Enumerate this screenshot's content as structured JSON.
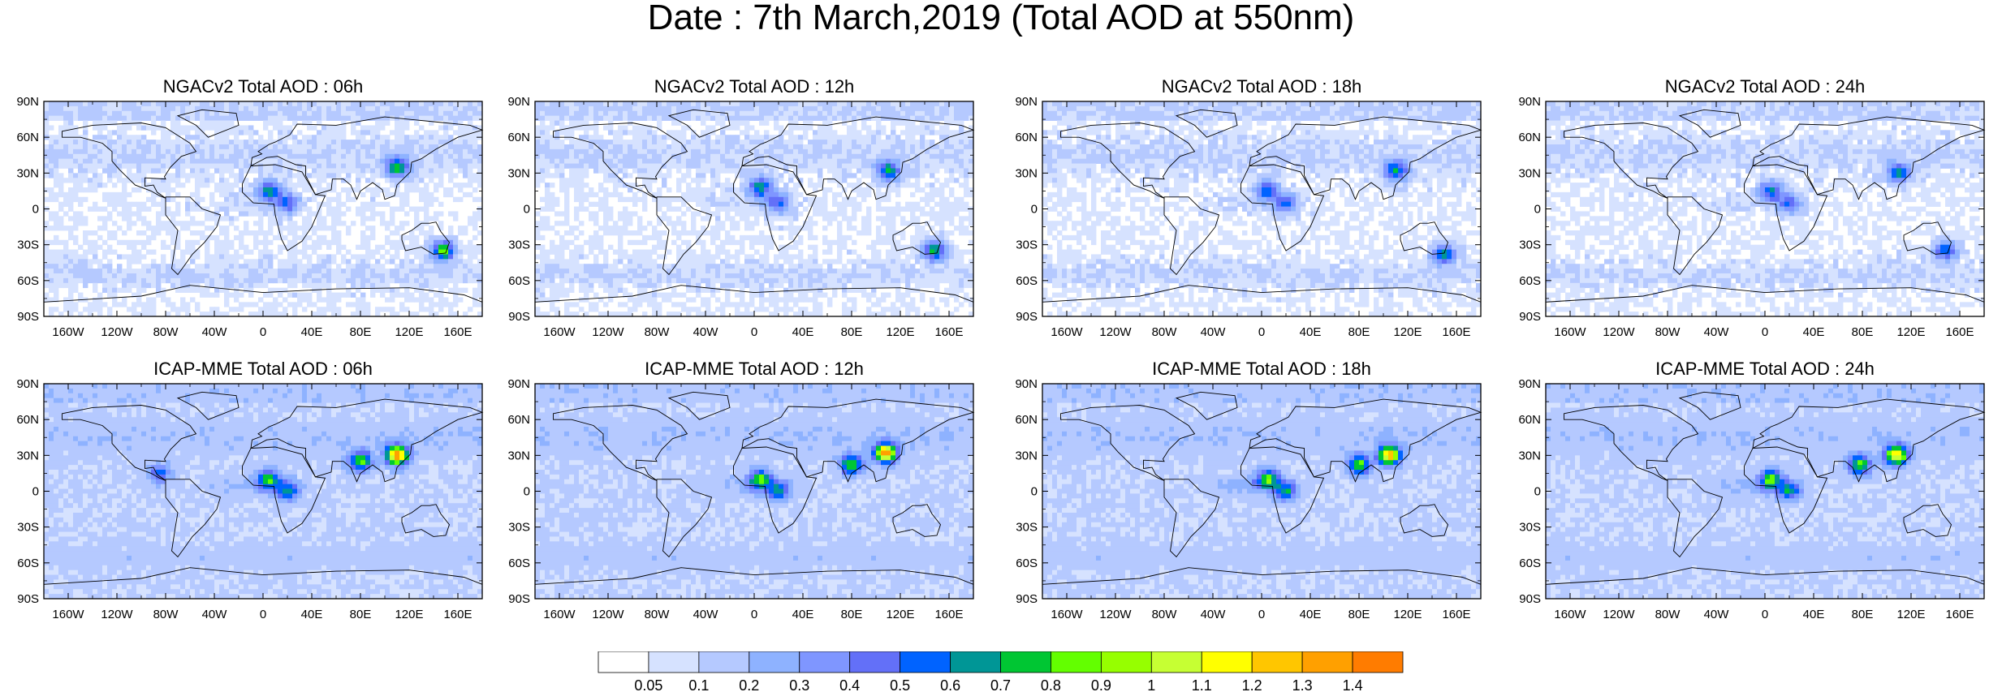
{
  "title": "Date : 7th March,2019 (Total AOD at 550nm)",
  "lat_ticks": [
    "90N",
    "60N",
    "30N",
    "0",
    "30S",
    "60S",
    "90S"
  ],
  "lon_ticks": [
    "160W",
    "120W",
    "80W",
    "40W",
    "0",
    "40E",
    "80E",
    "120E",
    "160E"
  ],
  "lon_tick_values": [
    -160,
    -120,
    -80,
    -40,
    0,
    40,
    80,
    120,
    160
  ],
  "lat_tick_values": [
    90,
    60,
    30,
    0,
    -30,
    -60,
    -90
  ],
  "chart_data": {
    "type": "heatmap",
    "title": "Date : 7th March,2019 (Total AOD at 550nm)",
    "xlim": [
      -180,
      180
    ],
    "ylim": [
      -90,
      90
    ],
    "panels": [
      {
        "title": "NGACv2 Total AOD : 06h",
        "model": "NGACv2",
        "hour": "06h",
        "hotspots": [
          {
            "name": "East Asia",
            "lon": 110,
            "lat": 35,
            "aod": 0.85
          },
          {
            "name": "West Africa",
            "lon": 5,
            "lat": 15,
            "aod": 0.75
          },
          {
            "name": "Central Africa",
            "lon": 20,
            "lat": 5,
            "aod": 0.6
          },
          {
            "name": "Southeast Australia",
            "lon": 148,
            "lat": -35,
            "aod": 0.95
          }
        ]
      },
      {
        "title": "NGACv2 Total AOD : 12h",
        "model": "NGACv2",
        "hour": "12h",
        "hotspots": [
          {
            "name": "East Asia",
            "lon": 110,
            "lat": 32,
            "aod": 0.8
          },
          {
            "name": "West Africa",
            "lon": 5,
            "lat": 18,
            "aod": 0.8
          },
          {
            "name": "Central Africa",
            "lon": 20,
            "lat": 5,
            "aod": 0.6
          },
          {
            "name": "Southeast Australia",
            "lon": 148,
            "lat": -35,
            "aod": 0.85
          }
        ]
      },
      {
        "title": "NGACv2 Total AOD : 18h",
        "model": "NGACv2",
        "hour": "18h",
        "hotspots": [
          {
            "name": "East Asia",
            "lon": 110,
            "lat": 32,
            "aod": 0.8
          },
          {
            "name": "West Africa",
            "lon": 5,
            "lat": 15,
            "aod": 0.7
          },
          {
            "name": "Central Africa",
            "lon": 20,
            "lat": 5,
            "aod": 0.6
          },
          {
            "name": "Southeast Australia",
            "lon": 150,
            "lat": -38,
            "aod": 0.8
          }
        ]
      },
      {
        "title": "NGACv2 Total AOD : 24h",
        "model": "NGACv2",
        "hour": "24h",
        "hotspots": [
          {
            "name": "East Asia",
            "lon": 110,
            "lat": 30,
            "aod": 0.75
          },
          {
            "name": "West Africa",
            "lon": 5,
            "lat": 15,
            "aod": 0.7
          },
          {
            "name": "Central Africa",
            "lon": 20,
            "lat": 5,
            "aod": 0.55
          },
          {
            "name": "Southeast Australia",
            "lon": 148,
            "lat": -35,
            "aod": 0.7
          }
        ]
      },
      {
        "title": "ICAP-MME Total AOD : 06h",
        "model": "ICAP-MME",
        "hour": "06h",
        "hotspots": [
          {
            "name": "East Asia",
            "lon": 110,
            "lat": 30,
            "aod": 1.4
          },
          {
            "name": "India",
            "lon": 80,
            "lat": 25,
            "aod": 0.9
          },
          {
            "name": "West Africa",
            "lon": 5,
            "lat": 10,
            "aod": 0.8
          },
          {
            "name": "Central Africa",
            "lon": 20,
            "lat": 0,
            "aod": 0.7
          },
          {
            "name": "Central America",
            "lon": -85,
            "lat": 15,
            "aod": 0.6
          }
        ]
      },
      {
        "title": "ICAP-MME Total AOD : 12h",
        "model": "ICAP-MME",
        "hour": "12h",
        "hotspots": [
          {
            "name": "East Asia",
            "lon": 108,
            "lat": 32,
            "aod": 1.4
          },
          {
            "name": "India",
            "lon": 80,
            "lat": 22,
            "aod": 0.9
          },
          {
            "name": "West Africa",
            "lon": 5,
            "lat": 10,
            "aod": 0.85
          },
          {
            "name": "Central Africa",
            "lon": 20,
            "lat": 0,
            "aod": 0.7
          }
        ]
      },
      {
        "title": "ICAP-MME Total AOD : 18h",
        "model": "ICAP-MME",
        "hour": "18h",
        "hotspots": [
          {
            "name": "East Asia",
            "lon": 105,
            "lat": 30,
            "aod": 1.3
          },
          {
            "name": "India",
            "lon": 80,
            "lat": 22,
            "aod": 0.9
          },
          {
            "name": "West Africa",
            "lon": 5,
            "lat": 10,
            "aod": 0.85
          },
          {
            "name": "Central Africa",
            "lon": 20,
            "lat": 0,
            "aod": 0.7
          }
        ]
      },
      {
        "title": "ICAP-MME Total AOD : 24h",
        "model": "ICAP-MME",
        "hour": "24h",
        "hotspots": [
          {
            "name": "East Asia",
            "lon": 108,
            "lat": 30,
            "aod": 1.25
          },
          {
            "name": "India",
            "lon": 78,
            "lat": 22,
            "aod": 0.9
          },
          {
            "name": "West Africa",
            "lon": 5,
            "lat": 10,
            "aod": 0.85
          },
          {
            "name": "Central Africa",
            "lon": 20,
            "lat": 0,
            "aod": 0.7
          }
        ]
      }
    ],
    "colorbar": {
      "levels": [
        "0.05",
        "0.1",
        "0.2",
        "0.3",
        "0.4",
        "0.5",
        "0.6",
        "0.7",
        "0.8",
        "0.9",
        "1",
        "1.1",
        "1.2",
        "1.3",
        "1.4"
      ],
      "colors": [
        "#ffffff",
        "#d6e2ff",
        "#b5c9ff",
        "#8eb2ff",
        "#7f96ff",
        "#6370f8",
        "#0063ff",
        "#009696",
        "#00c633",
        "#63ff00",
        "#96ff00",
        "#c6ff33",
        "#ffff00",
        "#ffc600",
        "#ffa000",
        "#ff7c00",
        "#ff1900"
      ]
    }
  }
}
